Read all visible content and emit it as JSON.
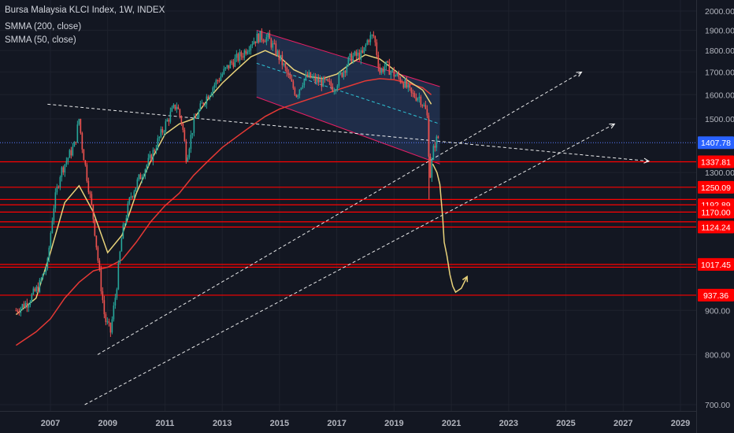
{
  "header": {
    "title": "Bursa Malaysia KLCI Index, 1W, INDEX",
    "ind1": "SMMA (200, close)",
    "ind2": "SMMA (50, close)"
  },
  "colors": {
    "background": "#131722",
    "grid": "#1e222d",
    "axis_text": "#b2b5be",
    "up": "#26a69a",
    "down": "#ef5350",
    "smma200": "#e53935",
    "smma50": "#e8d27a",
    "hline": "#ff0000",
    "channel_fill": "#2f4a7a",
    "channel_edge": "#e91e63",
    "midline": "#2ec4d6",
    "dashed": "#ffffff",
    "last_price_bg": "#2962ff",
    "level_bg": "#ff0000"
  },
  "chart_data": {
    "type": "line",
    "title": "Bursa Malaysia KLCI Index, 1W, INDEX",
    "x_ticks": [
      "2007",
      "2009",
      "2011",
      "2013",
      "2015",
      "2017",
      "2019",
      "2021",
      "2023",
      "2025",
      "2027",
      "2029"
    ],
    "y_ticks": [
      "2000.00",
      "1900.00",
      "1800.00",
      "1700.00",
      "1600.00",
      "1500.00",
      "1300.00",
      "900.00",
      "800.00",
      "700.00"
    ],
    "ylim": [
      700,
      2000
    ],
    "last_price": "1407.78",
    "horizontal_levels": [
      "1337.81",
      "1250.09",
      "1192.89",
      "1170.00",
      "1124.24",
      "1017.45",
      "937.36"
    ],
    "level_values": [
      1337.81,
      1250.09,
      1192.89,
      1170.0,
      1124.24,
      1017.45,
      937.36
    ],
    "extra_hlines": [
      1210,
      1140,
      1010
    ],
    "price": [
      [
        2005.8,
        900
      ],
      [
        2006.2,
        920
      ],
      [
        2006.6,
        960
      ],
      [
        2006.9,
        1020
      ],
      [
        2007.1,
        1180
      ],
      [
        2007.35,
        1300
      ],
      [
        2007.6,
        1350
      ],
      [
        2007.85,
        1400
      ],
      [
        2008.0,
        1500
      ],
      [
        2008.1,
        1400
      ],
      [
        2008.3,
        1270
      ],
      [
        2008.5,
        1150
      ],
      [
        2008.7,
        1000
      ],
      [
        2008.9,
        880
      ],
      [
        2009.1,
        850
      ],
      [
        2009.3,
        950
      ],
      [
        2009.5,
        1100
      ],
      [
        2009.8,
        1220
      ],
      [
        2010.1,
        1280
      ],
      [
        2010.5,
        1350
      ],
      [
        2010.9,
        1450
      ],
      [
        2011.2,
        1520
      ],
      [
        2011.4,
        1560
      ],
      [
        2011.6,
        1480
      ],
      [
        2011.75,
        1350
      ],
      [
        2012.0,
        1480
      ],
      [
        2012.3,
        1560
      ],
      [
        2012.7,
        1640
      ],
      [
        2013.0,
        1690
      ],
      [
        2013.3,
        1740
      ],
      [
        2013.7,
        1780
      ],
      [
        2014.0,
        1840
      ],
      [
        2014.3,
        1870
      ],
      [
        2014.6,
        1860
      ],
      [
        2014.9,
        1790
      ],
      [
        2015.1,
        1740
      ],
      [
        2015.4,
        1650
      ],
      [
        2015.6,
        1600
      ],
      [
        2015.8,
        1660
      ],
      [
        2016.0,
        1680
      ],
      [
        2016.3,
        1660
      ],
      [
        2016.6,
        1650
      ],
      [
        2016.9,
        1630
      ],
      [
        2017.2,
        1700
      ],
      [
        2017.5,
        1770
      ],
      [
        2017.9,
        1780
      ],
      [
        2018.1,
        1860
      ],
      [
        2018.3,
        1870
      ],
      [
        2018.5,
        1700
      ],
      [
        2018.7,
        1730
      ],
      [
        2019.0,
        1690
      ],
      [
        2019.3,
        1660
      ],
      [
        2019.6,
        1600
      ],
      [
        2019.9,
        1590
      ],
      [
        2020.15,
        1520
      ],
      [
        2020.25,
        1280
      ],
      [
        2020.4,
        1400
      ],
      [
        2020.55,
        1430
      ]
    ],
    "smma50": [
      [
        2005.8,
        890
      ],
      [
        2006.5,
        930
      ],
      [
        2007.0,
        1050
      ],
      [
        2007.5,
        1200
      ],
      [
        2008.0,
        1255
      ],
      [
        2008.5,
        1170
      ],
      [
        2009.0,
        1050
      ],
      [
        2009.5,
        1100
      ],
      [
        2010.0,
        1230
      ],
      [
        2010.5,
        1340
      ],
      [
        2011.0,
        1440
      ],
      [
        2011.5,
        1480
      ],
      [
        2012.0,
        1500
      ],
      [
        2012.5,
        1580
      ],
      [
        2013.0,
        1650
      ],
      [
        2013.5,
        1710
      ],
      [
        2014.0,
        1770
      ],
      [
        2014.5,
        1800
      ],
      [
        2015.0,
        1770
      ],
      [
        2015.5,
        1710
      ],
      [
        2016.0,
        1680
      ],
      [
        2016.5,
        1670
      ],
      [
        2017.0,
        1690
      ],
      [
        2017.5,
        1740
      ],
      [
        2018.0,
        1780
      ],
      [
        2018.5,
        1760
      ],
      [
        2019.0,
        1710
      ],
      [
        2019.5,
        1660
      ],
      [
        2020.0,
        1620
      ],
      [
        2020.3,
        1560
      ]
    ],
    "smma200": [
      [
        2005.8,
        820
      ],
      [
        2006.5,
        850
      ],
      [
        2007.0,
        880
      ],
      [
        2007.5,
        930
      ],
      [
        2008.0,
        970
      ],
      [
        2008.5,
        1000
      ],
      [
        2009.0,
        1010
      ],
      [
        2009.5,
        1030
      ],
      [
        2010.0,
        1080
      ],
      [
        2010.5,
        1140
      ],
      [
        2011.0,
        1190
      ],
      [
        2011.5,
        1230
      ],
      [
        2012.0,
        1290
      ],
      [
        2012.5,
        1340
      ],
      [
        2013.0,
        1390
      ],
      [
        2013.5,
        1430
      ],
      [
        2014.0,
        1470
      ],
      [
        2014.5,
        1510
      ],
      [
        2015.0,
        1540
      ],
      [
        2015.5,
        1560
      ],
      [
        2016.0,
        1580
      ],
      [
        2016.5,
        1600
      ],
      [
        2017.0,
        1620
      ],
      [
        2017.5,
        1640
      ],
      [
        2018.0,
        1660
      ],
      [
        2018.5,
        1670
      ],
      [
        2019.0,
        1665
      ],
      [
        2019.5,
        1650
      ],
      [
        2020.0,
        1630
      ],
      [
        2020.3,
        1600
      ]
    ],
    "projection": [
      [
        2020.35,
        1330
      ],
      [
        2020.5,
        1300
      ],
      [
        2020.6,
        1260
      ],
      [
        2020.7,
        1150
      ],
      [
        2020.75,
        1080
      ],
      [
        2020.85,
        1040
      ],
      [
        2020.95,
        990
      ],
      [
        2021.05,
        960
      ],
      [
        2021.15,
        945
      ],
      [
        2021.35,
        955
      ],
      [
        2021.55,
        985
      ]
    ],
    "channel": {
      "upper": [
        [
          2014.2,
          1900
        ],
        [
          2020.6,
          1635
        ]
      ],
      "lower": [
        [
          2014.2,
          1590
        ],
        [
          2020.6,
          1330
        ]
      ],
      "mid": [
        [
          2014.2,
          1740
        ],
        [
          2020.6,
          1480
        ]
      ]
    },
    "dashed_lines": [
      [
        [
          2006.9,
          1560
        ],
        [
          2027.9,
          1340
        ]
      ],
      [
        [
          2008.65,
          800
        ],
        [
          2025.55,
          1700
        ]
      ],
      [
        [
          2008.2,
          700
        ],
        [
          2026.7,
          1480
        ]
      ]
    ]
  }
}
